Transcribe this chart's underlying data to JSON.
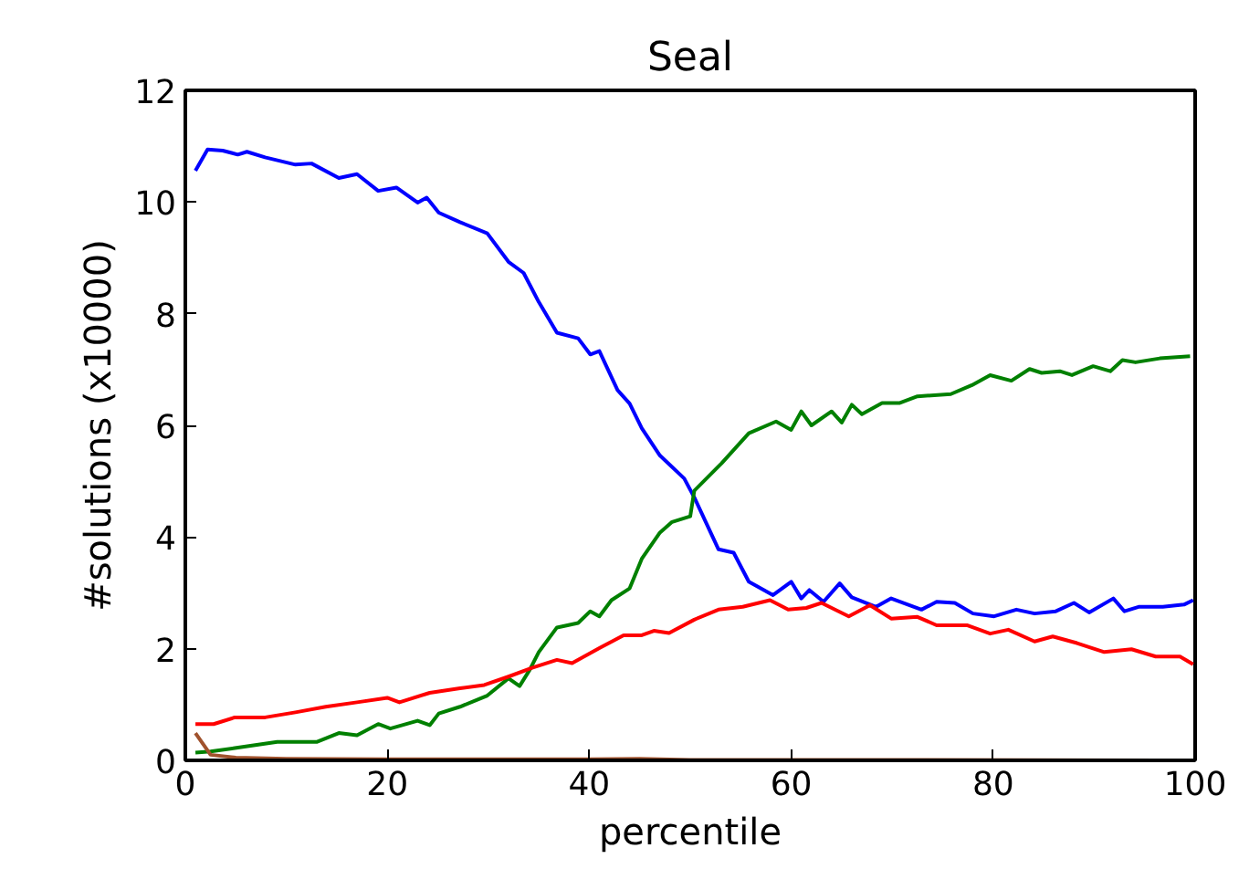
{
  "chart_data": {
    "type": "line",
    "title": "Seal",
    "xlabel": "percentile",
    "ylabel": "#solutions (x10000)",
    "xlim": [
      0,
      100
    ],
    "ylim": [
      0,
      12
    ],
    "xticks": [
      0,
      20,
      40,
      60,
      80,
      100
    ],
    "yticks": [
      0,
      2,
      4,
      6,
      8,
      10,
      12
    ],
    "grid": false,
    "marker": "none",
    "line_style": "solid",
    "series": [
      {
        "color": "#0000ff",
        "x": [
          1,
          2.2,
          3.7,
          5.2,
          6.1,
          7.9,
          10.9,
          12.5,
          15.2,
          17,
          19.1,
          20.9,
          23,
          23.9,
          25.1,
          27.2,
          29.9,
          32,
          33.5,
          35,
          36.8,
          38.9,
          40.1,
          41,
          42.8,
          44,
          45.2,
          47,
          49.4,
          50.4,
          52.8,
          54.3,
          55.8,
          58.2,
          60,
          61,
          61.8,
          63.2,
          64.8,
          66,
          68.4,
          69.9,
          72.9,
          74.4,
          76.2,
          78,
          80.1,
          82.3,
          84.1,
          86.2,
          88,
          89.5,
          91.9,
          93,
          94.4,
          96.8,
          98.9,
          99.8
        ],
        "values": [
          10.56,
          10.94,
          10.92,
          10.85,
          10.9,
          10.8,
          10.67,
          10.69,
          10.43,
          10.5,
          10.2,
          10.26,
          9.99,
          10.08,
          9.81,
          9.64,
          9.44,
          8.93,
          8.73,
          8.21,
          7.66,
          7.56,
          7.27,
          7.33,
          6.63,
          6.39,
          5.95,
          5.46,
          5.05,
          4.71,
          3.78,
          3.72,
          3.2,
          2.96,
          3.2,
          2.9,
          3.05,
          2.84,
          3.17,
          2.92,
          2.75,
          2.9,
          2.7,
          2.84,
          2.82,
          2.63,
          2.58,
          2.7,
          2.63,
          2.67,
          2.82,
          2.65,
          2.9,
          2.67,
          2.75,
          2.75,
          2.79,
          2.87
        ]
      },
      {
        "color": "#008000",
        "x": [
          1,
          2.5,
          4.9,
          9.1,
          13,
          15.2,
          17,
          19.1,
          20.3,
          23,
          24.2,
          25.1,
          27.2,
          29.9,
          32,
          33.1,
          34.1,
          35,
          36.8,
          38.9,
          40.1,
          41,
          42.2,
          44,
          45.2,
          47,
          48.2,
          50,
          50.4,
          53.1,
          55.8,
          58.5,
          60,
          61,
          62,
          64,
          65,
          66,
          67,
          69,
          70.7,
          72.5,
          75.8,
          77.9,
          79.7,
          81.8,
          83.6,
          84.8,
          86.6,
          87.8,
          89.9,
          91.6,
          92.8,
          94.1,
          96.5,
          99.5
        ],
        "values": [
          0.14,
          0.16,
          0.22,
          0.33,
          0.33,
          0.49,
          0.45,
          0.65,
          0.57,
          0.71,
          0.63,
          0.84,
          0.96,
          1.16,
          1.47,
          1.33,
          1.62,
          1.94,
          2.38,
          2.46,
          2.67,
          2.58,
          2.87,
          3.08,
          3.61,
          4.08,
          4.27,
          4.37,
          4.83,
          5.32,
          5.86,
          6.07,
          5.92,
          6.25,
          6.0,
          6.25,
          6.05,
          6.37,
          6.2,
          6.4,
          6.4,
          6.52,
          6.56,
          6.72,
          6.9,
          6.8,
          7.01,
          6.94,
          6.97,
          6.9,
          7.06,
          6.97,
          7.17,
          7.13,
          7.2,
          7.24
        ]
      },
      {
        "color": "#ff0000",
        "x": [
          1,
          2.8,
          4.9,
          7.9,
          10.9,
          13.9,
          17,
          20,
          21.2,
          24.2,
          27.2,
          29.6,
          32,
          34.4,
          36.8,
          38.3,
          41,
          43.4,
          45.2,
          46.4,
          47.9,
          50.4,
          52.8,
          55.2,
          57.9,
          59.7,
          61.5,
          63,
          65.7,
          67.8,
          69.9,
          72.5,
          74.4,
          77.4,
          79.7,
          81.5,
          84.1,
          85.9,
          88.3,
          91,
          93.7,
          96.1,
          98.5,
          99.8
        ],
        "values": [
          0.65,
          0.65,
          0.77,
          0.77,
          0.86,
          0.96,
          1.04,
          1.12,
          1.04,
          1.21,
          1.29,
          1.35,
          1.5,
          1.66,
          1.8,
          1.74,
          2.01,
          2.24,
          2.24,
          2.32,
          2.28,
          2.52,
          2.7,
          2.75,
          2.87,
          2.7,
          2.73,
          2.82,
          2.58,
          2.78,
          2.54,
          2.57,
          2.42,
          2.42,
          2.27,
          2.34,
          2.13,
          2.22,
          2.1,
          1.94,
          1.99,
          1.86,
          1.86,
          1.72
        ]
      },
      {
        "color": "#a0522d",
        "x": [
          1,
          2.5,
          5,
          10,
          20,
          40,
          45,
          50,
          60,
          100
        ],
        "values": [
          0.49,
          0.1,
          0.05,
          0.03,
          0.02,
          0.02,
          0.03,
          0.01,
          0.01,
          0.0
        ]
      }
    ]
  }
}
